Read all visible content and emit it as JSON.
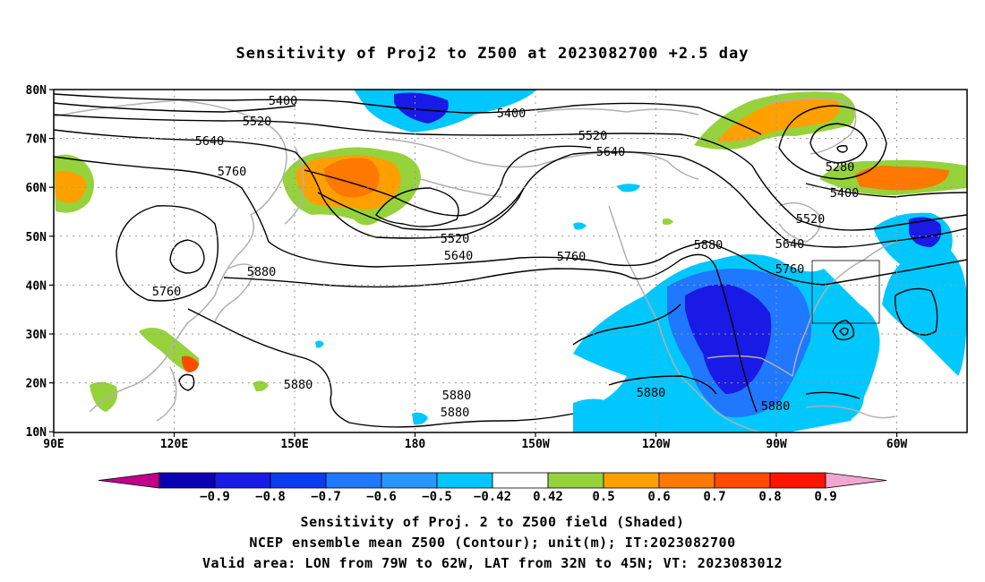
{
  "title": "Sensitivity of Proj2 to Z500 at 2023082700 +2.5 day",
  "map": {
    "lat_labels": [
      "80N",
      "70N",
      "60N",
      "50N",
      "40N",
      "30N",
      "20N",
      "10N"
    ],
    "lon_labels": [
      "90E",
      "120E",
      "150E",
      "180",
      "150W",
      "120W",
      "90W",
      "60W"
    ],
    "valid_box": {
      "lon": [
        -79,
        -62
      ],
      "lat": [
        32,
        45
      ]
    },
    "contour_color": "#000000",
    "coastline_color": "#b0b0b0",
    "contour_labels": [
      {
        "text": "5400"
      },
      {
        "text": "5400"
      },
      {
        "text": "5520"
      },
      {
        "text": "5520"
      },
      {
        "text": "5640"
      },
      {
        "text": "5640"
      },
      {
        "text": "5760"
      },
      {
        "text": "5760"
      },
      {
        "text": "5520"
      },
      {
        "text": "5640"
      },
      {
        "text": "5880"
      },
      {
        "text": "5760"
      },
      {
        "text": "5880"
      },
      {
        "text": "5280"
      },
      {
        "text": "5400"
      },
      {
        "text": "5520"
      },
      {
        "text": "5640"
      },
      {
        "text": "5760"
      },
      {
        "text": "5880"
      },
      {
        "text": "5880"
      },
      {
        "text": "5880"
      },
      {
        "text": "5880"
      },
      {
        "text": "5880"
      }
    ],
    "shading": {
      "positive": [
        {
          "region": "North Pacific (Bering/Kamchatka)",
          "level": "0.7"
        },
        {
          "region": "Greenland / Baffin Bay",
          "level": "0.6"
        },
        {
          "region": "North Atlantic 60N",
          "level": "0.7"
        },
        {
          "region": "Siberia 60N 90E",
          "level": "0.6"
        },
        {
          "region": "Taiwan / Philippine Sea",
          "level": "0.8"
        }
      ],
      "negative": [
        {
          "region": "Arctic near Dateline",
          "level": "-0.7"
        },
        {
          "region": "Eastern North America / Gulf of Mexico",
          "level": "-0.8"
        },
        {
          "region": "Northwest Atlantic near Newfoundland",
          "level": "-0.8"
        },
        {
          "region": "Eastern Tropical Pacific",
          "level": "-0.6"
        }
      ]
    }
  },
  "colorbar": {
    "labels": [
      "−0.9",
      "−0.8",
      "−0.7",
      "−0.6",
      "−0.5",
      "−0.42",
      "0.42",
      "0.5",
      "0.6",
      "0.7",
      "0.8",
      "0.9"
    ],
    "colors": [
      "#c0008c",
      "#0a00b4",
      "#1a1ae6",
      "#0a3cf0",
      "#1f78ff",
      "#2896ff",
      "#00c8ff",
      "#ffffff",
      "#96d23c",
      "#ffa000",
      "#ff7800",
      "#ff4b00",
      "#ff1400",
      "#f3a6d0"
    ]
  },
  "captions": {
    "line1": "Sensitivity of Proj. 2 to Z500 field (Shaded)",
    "line2": "NCEP ensemble mean Z500 (Contour); unit(m); IT:2023082700",
    "line3": "Valid area: LON from 79W to 62W, LAT from 32N to 45N; VT: 2023083012"
  }
}
